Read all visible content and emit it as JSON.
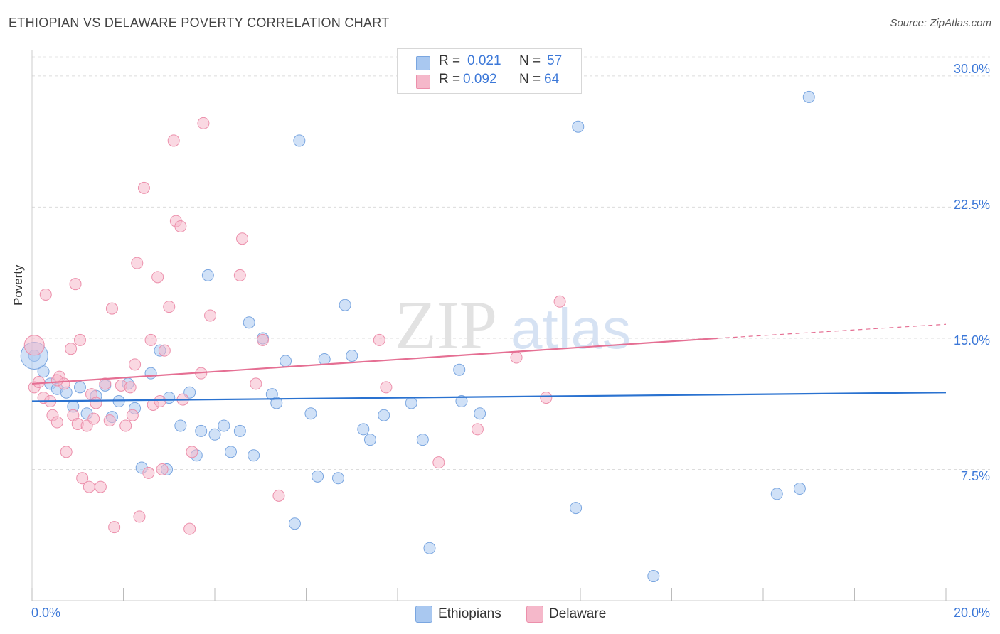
{
  "header": {
    "title": "ETHIOPIAN VS DELAWARE POVERTY CORRELATION CHART",
    "source": "Source: ZipAtlas.com"
  },
  "legend_top": {
    "rows": [
      {
        "r_label": "R =",
        "r_value": "0.021",
        "n_label": "N =",
        "n_value": "57",
        "color": "#a9c8f0"
      },
      {
        "r_label": "R =",
        "r_value": "0.092",
        "n_label": "N =",
        "n_value": "64",
        "color": "#f5b8ca"
      }
    ]
  },
  "bottom_legend": {
    "items": [
      {
        "label": "Ethiopians",
        "color": "#a9c8f0"
      },
      {
        "label": "Delaware",
        "color": "#f5b8ca"
      }
    ]
  },
  "watermark": {
    "zip": "ZIP",
    "atlas": "atlas"
  },
  "chart_data": {
    "type": "scatter",
    "title": "ETHIOPIAN VS DELAWARE POVERTY CORRELATION CHART",
    "xlabel": "",
    "ylabel": "Poverty",
    "xlim": [
      0,
      20
    ],
    "ylim": [
      0,
      31.5
    ],
    "x_tick_labels": [
      "0.0%",
      "20.0%"
    ],
    "y_ticks": [
      7.5,
      15.0,
      22.5,
      30.0
    ],
    "y_tick_labels": [
      "7.5%",
      "15.0%",
      "22.5%",
      "30.0%"
    ],
    "grid": true,
    "legend_position": "top-center",
    "series": [
      {
        "name": "Ethiopians",
        "color": "#a9c8f0",
        "stroke": "#7aa6e0",
        "trend_color": "#2a72d0",
        "trend": {
          "x0": 0,
          "y0": 11.4,
          "x1": 20,
          "y1": 11.9,
          "dashed_from": null
        },
        "points": [
          [
            0.05,
            14.0
          ],
          [
            0.25,
            13.1
          ],
          [
            0.4,
            12.4
          ],
          [
            0.55,
            12.1
          ],
          [
            0.75,
            11.9
          ],
          [
            0.9,
            11.1
          ],
          [
            1.05,
            12.2
          ],
          [
            1.2,
            10.7
          ],
          [
            1.4,
            11.7
          ],
          [
            1.6,
            12.3
          ],
          [
            1.75,
            10.5
          ],
          [
            1.9,
            11.4
          ],
          [
            2.1,
            12.4
          ],
          [
            2.25,
            11.0
          ],
          [
            2.4,
            7.6
          ],
          [
            2.6,
            13.0
          ],
          [
            2.8,
            14.3
          ],
          [
            2.95,
            7.5
          ],
          [
            3.0,
            11.6
          ],
          [
            3.25,
            10.0
          ],
          [
            3.45,
            11.9
          ],
          [
            3.6,
            8.3
          ],
          [
            3.7,
            9.7
          ],
          [
            3.85,
            18.6
          ],
          [
            4.0,
            9.5
          ],
          [
            4.2,
            10.0
          ],
          [
            4.35,
            8.5
          ],
          [
            4.55,
            9.7
          ],
          [
            4.75,
            15.9
          ],
          [
            4.85,
            8.3
          ],
          [
            5.05,
            15.0
          ],
          [
            5.25,
            11.8
          ],
          [
            5.35,
            11.3
          ],
          [
            5.55,
            13.7
          ],
          [
            5.75,
            4.4
          ],
          [
            5.85,
            26.3
          ],
          [
            6.1,
            10.7
          ],
          [
            6.25,
            7.1
          ],
          [
            6.4,
            13.8
          ],
          [
            6.7,
            7.0
          ],
          [
            6.85,
            16.9
          ],
          [
            7.0,
            14.0
          ],
          [
            7.25,
            9.8
          ],
          [
            7.4,
            9.2
          ],
          [
            7.7,
            10.6
          ],
          [
            8.3,
            11.3
          ],
          [
            8.55,
            9.2
          ],
          [
            8.7,
            3.0
          ],
          [
            9.35,
            13.2
          ],
          [
            9.4,
            11.4
          ],
          [
            9.8,
            10.7
          ],
          [
            11.9,
            5.3
          ],
          [
            11.95,
            27.1
          ],
          [
            13.6,
            1.4
          ],
          [
            16.3,
            6.1
          ],
          [
            16.8,
            6.4
          ],
          [
            17.0,
            28.8
          ]
        ],
        "big_point": [
          0.05,
          14.0
        ]
      },
      {
        "name": "Delaware",
        "color": "#f5b8ca",
        "stroke": "#ec8fab",
        "trend_color": "#e56f93",
        "trend": {
          "x0": 0,
          "y0": 12.4,
          "x1": 15.0,
          "y1": 15.0,
          "dashed_to_x": 20,
          "dashed_to_y": 15.8
        },
        "points": [
          [
            0.05,
            12.2
          ],
          [
            0.15,
            12.5
          ],
          [
            0.25,
            11.6
          ],
          [
            0.3,
            17.5
          ],
          [
            0.4,
            11.4
          ],
          [
            0.45,
            10.6
          ],
          [
            0.55,
            10.2
          ],
          [
            0.6,
            12.8
          ],
          [
            0.7,
            12.4
          ],
          [
            0.75,
            8.5
          ],
          [
            0.85,
            14.4
          ],
          [
            0.9,
            10.6
          ],
          [
            0.95,
            18.1
          ],
          [
            1.0,
            10.1
          ],
          [
            1.05,
            14.9
          ],
          [
            1.1,
            7.0
          ],
          [
            1.2,
            10.0
          ],
          [
            1.25,
            6.5
          ],
          [
            1.3,
            11.8
          ],
          [
            1.4,
            11.3
          ],
          [
            1.5,
            6.5
          ],
          [
            1.6,
            12.4
          ],
          [
            1.7,
            10.3
          ],
          [
            1.75,
            16.7
          ],
          [
            1.8,
            4.2
          ],
          [
            1.95,
            12.3
          ],
          [
            2.05,
            10.0
          ],
          [
            2.2,
            10.6
          ],
          [
            2.25,
            13.5
          ],
          [
            2.3,
            19.3
          ],
          [
            2.35,
            4.8
          ],
          [
            2.45,
            23.6
          ],
          [
            2.55,
            7.3
          ],
          [
            2.6,
            14.9
          ],
          [
            2.65,
            11.2
          ],
          [
            2.75,
            18.5
          ],
          [
            2.8,
            11.4
          ],
          [
            2.85,
            7.5
          ],
          [
            2.9,
            14.3
          ],
          [
            3.0,
            16.8
          ],
          [
            3.1,
            26.3
          ],
          [
            3.15,
            21.7
          ],
          [
            3.25,
            21.4
          ],
          [
            3.45,
            4.1
          ],
          [
            3.5,
            8.5
          ],
          [
            3.7,
            13.0
          ],
          [
            3.75,
            27.3
          ],
          [
            3.9,
            16.3
          ],
          [
            4.55,
            18.6
          ],
          [
            4.6,
            20.7
          ],
          [
            4.9,
            12.4
          ],
          [
            5.05,
            14.9
          ],
          [
            5.4,
            6.0
          ],
          [
            7.6,
            14.9
          ],
          [
            7.75,
            12.2
          ],
          [
            8.9,
            7.9
          ],
          [
            9.75,
            9.8
          ],
          [
            10.6,
            13.9
          ],
          [
            11.25,
            11.6
          ],
          [
            11.55,
            17.1
          ],
          [
            0.55,
            12.6
          ],
          [
            1.35,
            10.4
          ],
          [
            2.15,
            12.2
          ],
          [
            3.3,
            11.5
          ]
        ],
        "big_point": [
          0.05,
          14.6
        ]
      }
    ]
  }
}
